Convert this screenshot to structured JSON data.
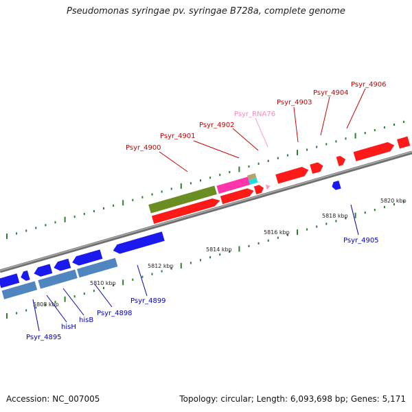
{
  "header": {
    "title": "Pseudomonas syringae pv. syringae B728a, complete genome"
  },
  "footer": {
    "accession": "Accession: NC_007005",
    "summary": "Topology: circular; Length: 6,093,698 bp; Genes: 5,171"
  },
  "colors": {
    "forward_gene": "#ff1a1a",
    "reverse_gene": "#1a1aee",
    "reverse_gene_alt": "#4f86c0",
    "ncrna": "#ff66aa",
    "olive_feature": "#6b8e23",
    "backbone": "#808080",
    "tick_marks": "#2e7d32",
    "label_forward": "#cc0000",
    "label_reverse": "#0000bb",
    "label_rna": "#ff88bb"
  },
  "scale": {
    "ticks": [
      {
        "label": "5808 kbp"
      },
      {
        "label": "5810 kbp"
      },
      {
        "label": "5812 kbp"
      },
      {
        "label": "5814 kbp"
      },
      {
        "label": "5816 kbp"
      },
      {
        "label": "5818 kbp"
      },
      {
        "label": "5820 kbp"
      }
    ]
  },
  "gene_labels": {
    "forward": [
      "Psyr_4900",
      "Psyr_4901",
      "Psyr_4902",
      "Psyr_4903",
      "Psyr_4904",
      "Psyr_4906"
    ],
    "rna": "Psyr_RNA76",
    "reverse": [
      "Psyr_4895",
      "hisH",
      "hisB",
      "Psyr_4898",
      "Psyr_4899",
      "Psyr_4905"
    ]
  }
}
